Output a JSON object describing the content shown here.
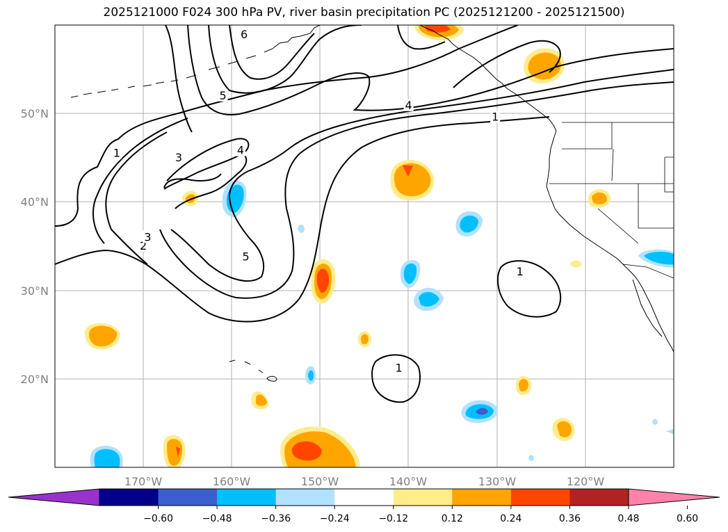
{
  "title": "2025121000 F024 300 hPa PV, river basin precipitation PC (2025121200 - 2025121500)",
  "map": {
    "projection": "PlateCarree",
    "lon_range": [
      -180,
      -110
    ],
    "lat_range": [
      10,
      60
    ],
    "lon_ticks": [
      {
        "label": "170°W"
      },
      {
        "label": "160°W"
      },
      {
        "label": "150°W"
      },
      {
        "label": "140°W"
      },
      {
        "label": "130°W"
      },
      {
        "label": "120°W"
      }
    ],
    "lat_ticks": [
      {
        "label": "50°N"
      },
      {
        "label": "40°N"
      },
      {
        "label": "30°N"
      },
      {
        "label": "20°N"
      }
    ],
    "pv_contour_labels": [
      {
        "text": "1",
        "lon": -173,
        "lat": 45.5
      },
      {
        "text": "2",
        "lon": -170,
        "lat": 35
      },
      {
        "text": "3",
        "lon": -169.5,
        "lat": 36
      },
      {
        "text": "3",
        "lon": -166,
        "lat": 45
      },
      {
        "text": "4",
        "lon": -159,
        "lat": 45.8
      },
      {
        "text": "5",
        "lon": -161,
        "lat": 52
      },
      {
        "text": "6",
        "lon": -158.6,
        "lat": 58.9
      },
      {
        "text": "5",
        "lon": -158.4,
        "lat": 33.8
      },
      {
        "text": "4",
        "lon": -140,
        "lat": 50.9
      },
      {
        "text": "1",
        "lon": -130.2,
        "lat": 49.6
      },
      {
        "text": "1",
        "lon": -127.4,
        "lat": 32.1
      },
      {
        "text": "1",
        "lon": -141.1,
        "lat": 21.2
      }
    ]
  },
  "colorbar": {
    "colors": [
      "#9932cc",
      "#00008b",
      "#3a5fcd",
      "#00bfff",
      "#b0e2ff",
      "#ffffff",
      "#ffec8b",
      "#ffa500",
      "#ff4500",
      "#b22222",
      "#ff82ab"
    ],
    "levels": [
      "−0.60",
      "−0.48",
      "−0.36",
      "−0.24",
      "−0.12",
      "0.12",
      "0.24",
      "0.36",
      "0.48",
      "0.60"
    ]
  }
}
